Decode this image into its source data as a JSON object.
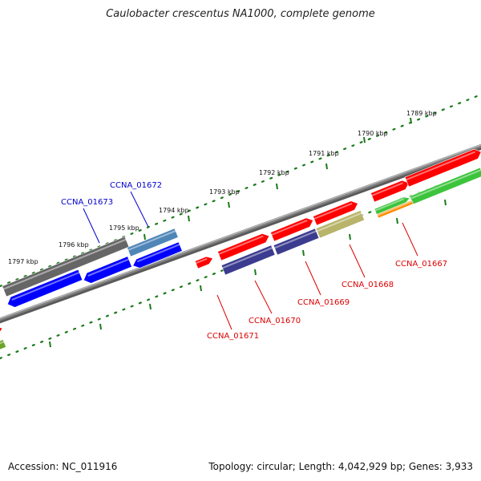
{
  "title": "Caulobacter crescentus NA1000, complete genome",
  "footer": {
    "accession": "Accession: NC_011916",
    "summary": "Topology: circular; Length: 4,042,929 bp; Genes: 3,933"
  },
  "colors": {
    "red_gene": "#ff0000",
    "blue_gene": "#0000ff",
    "gray_gene": "#666666",
    "steel_gene": "#4f86b8",
    "navy_gene": "#3b3b8f",
    "olive_gene": "#b8b46a",
    "green_gene": "#3cc43c",
    "orange_gene": "#ff8c00",
    "backbone": "#808080",
    "ticks": "#1a7a1a",
    "label_blue": "#0000cc",
    "label_red": "#dd0000"
  },
  "scale_labels": [
    "1789 kbp",
    "1790 kbp",
    "1791 kbp",
    "1792 kbp",
    "1793 kbp",
    "1794 kbp",
    "1795 kbp",
    "1796 kbp",
    "1797 kbp"
  ],
  "gene_labels": [
    {
      "text": "CCNA_01672",
      "color": "blue"
    },
    {
      "text": "CCNA_01673",
      "color": "blue"
    },
    {
      "text": "CCNA_01667",
      "color": "red"
    },
    {
      "text": "CCNA_01668",
      "color": "red"
    },
    {
      "text": "CCNA_01669",
      "color": "red"
    },
    {
      "text": "CCNA_01670",
      "color": "red"
    },
    {
      "text": "CCNA_01671",
      "color": "red"
    }
  ]
}
